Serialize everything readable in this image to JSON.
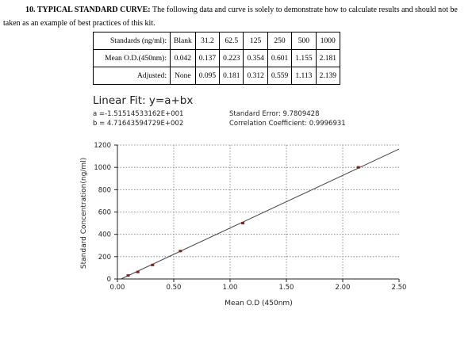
{
  "header": {
    "label": "10. TYPICAL STANDARD CURVE:",
    "text": "The following data and curve is solely to demonstrate how to calculate results and should not be taken as an example of best practices of this kit."
  },
  "table": {
    "rows": [
      [
        "Standards (ng/ml):",
        "Blank",
        "31.2",
        "62.5",
        "125",
        "250",
        "500",
        "1000"
      ],
      [
        "Mean O.D.(450nm):",
        "0.042",
        "0.137",
        "0.223",
        "0.354",
        "0.601",
        "1.155",
        "2.181"
      ],
      [
        "Adjusted:",
        "None",
        "0.095",
        "0.181",
        "0.312",
        "0.559",
        "1.113",
        "2.139"
      ]
    ]
  },
  "chart_data": {
    "type": "scatter",
    "title": "Linear Fit: y=a+bx",
    "a": {
      "value": -15.1514533162,
      "label": "a =-1.51514533162E+001"
    },
    "b": {
      "value": 471.643594729,
      "label": "b = 4.71643594729E+002"
    },
    "standard_error": "Standard Error: 9.7809428",
    "correlation": "Correlation Coefficient: 0.9996931",
    "x_label": "Mean O.D (450nm)",
    "y_label": "Standard Concentration(ng/ml)",
    "x": [
      0.095,
      0.181,
      0.312,
      0.559,
      1.113,
      2.139
    ],
    "values": [
      31.2,
      62.5,
      125,
      250,
      500,
      1000
    ],
    "color": "#8b1a1a",
    "line_color": "#444444",
    "xlim": [
      0,
      2.5
    ],
    "xticks": [
      {
        "value": 0,
        "label": "0.00"
      },
      {
        "value": 0.5,
        "label": "0.50"
      },
      {
        "value": 1,
        "label": "1.00"
      },
      {
        "value": 1.5,
        "label": "1.50"
      },
      {
        "value": 2,
        "label": "2.00"
      },
      {
        "value": 2.5,
        "label": "2.50"
      }
    ],
    "ylim": [
      0,
      1200
    ],
    "yticks": [
      0,
      200,
      400,
      600,
      800,
      1000,
      1200
    ],
    "grid": true
  }
}
